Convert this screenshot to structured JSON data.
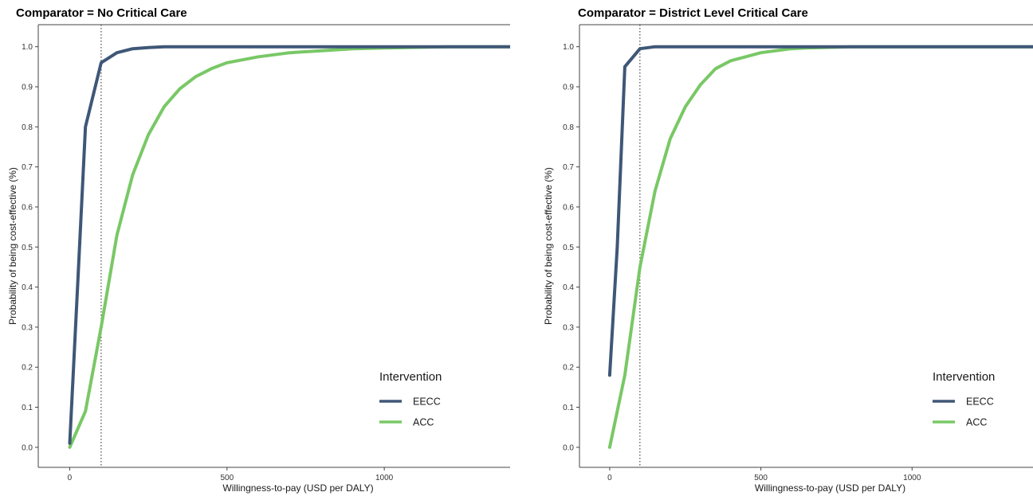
{
  "colors": {
    "EECC": "#3f5777",
    "ACC": "#79c866"
  },
  "chart_data": [
    {
      "type": "line",
      "title": "Comparator = No Critical Care",
      "xlabel": "Willingness-to-pay (USD per DALY)",
      "ylabel": "Probability of being cost-effective (%)",
      "xlim": [
        -100,
        1400
      ],
      "ylim": [
        -0.05,
        1.055
      ],
      "xticks": [
        0,
        500,
        1000
      ],
      "yticks": [
        0.0,
        0.1,
        0.2,
        0.3,
        0.4,
        0.5,
        0.6,
        0.7,
        0.8,
        0.9,
        1.0
      ],
      "threshold_x": 100,
      "grid": false,
      "legend": {
        "title": "Intervention",
        "position": "right"
      },
      "series": [
        {
          "name": "EECC",
          "color": "EECC",
          "x": [
            0,
            25,
            50,
            100,
            150,
            200,
            250,
            300,
            400,
            600,
            800,
            1000,
            1200,
            1400
          ],
          "y": [
            0.01,
            0.4,
            0.8,
            0.96,
            0.985,
            0.995,
            0.998,
            1.0,
            1.0,
            1.0,
            1.0,
            1.0,
            1.0,
            1.0
          ]
        },
        {
          "name": "ACC",
          "color": "ACC",
          "x": [
            0,
            50,
            100,
            150,
            200,
            250,
            300,
            350,
            400,
            450,
            500,
            600,
            700,
            800,
            900,
            1000,
            1200,
            1400
          ],
          "y": [
            0.0,
            0.09,
            0.3,
            0.53,
            0.68,
            0.78,
            0.85,
            0.895,
            0.925,
            0.945,
            0.96,
            0.975,
            0.985,
            0.99,
            0.995,
            0.997,
            1.0,
            1.0
          ]
        }
      ]
    },
    {
      "type": "line",
      "title": "Comparator = District Level Critical Care",
      "xlabel": "Willingness-to-pay (USD per DALY)",
      "ylabel": "Probability of being cost-effective (%)",
      "xlim": [
        -100,
        1400
      ],
      "ylim": [
        -0.05,
        1.055
      ],
      "xticks": [
        0,
        500,
        1000
      ],
      "yticks": [
        0.0,
        0.1,
        0.2,
        0.3,
        0.4,
        0.5,
        0.6,
        0.7,
        0.8,
        0.9,
        1.0
      ],
      "threshold_x": 100,
      "grid": false,
      "legend": {
        "title": "Intervention",
        "position": "right"
      },
      "series": [
        {
          "name": "EECC",
          "color": "EECC",
          "x": [
            0,
            25,
            50,
            100,
            150,
            200,
            300,
            400,
            600,
            800,
            1000,
            1200,
            1400
          ],
          "y": [
            0.18,
            0.5,
            0.95,
            0.995,
            1.0,
            1.0,
            1.0,
            1.0,
            1.0,
            1.0,
            1.0,
            1.0,
            1.0
          ]
        },
        {
          "name": "ACC",
          "color": "ACC",
          "x": [
            0,
            50,
            100,
            150,
            200,
            250,
            300,
            350,
            400,
            450,
            500,
            550,
            600,
            650,
            700,
            800,
            1000,
            1200,
            1400
          ],
          "y": [
            0.0,
            0.18,
            0.45,
            0.64,
            0.77,
            0.85,
            0.905,
            0.945,
            0.965,
            0.975,
            0.985,
            0.99,
            0.995,
            0.997,
            0.998,
            1.0,
            1.0,
            1.0,
            1.0
          ]
        }
      ]
    }
  ]
}
